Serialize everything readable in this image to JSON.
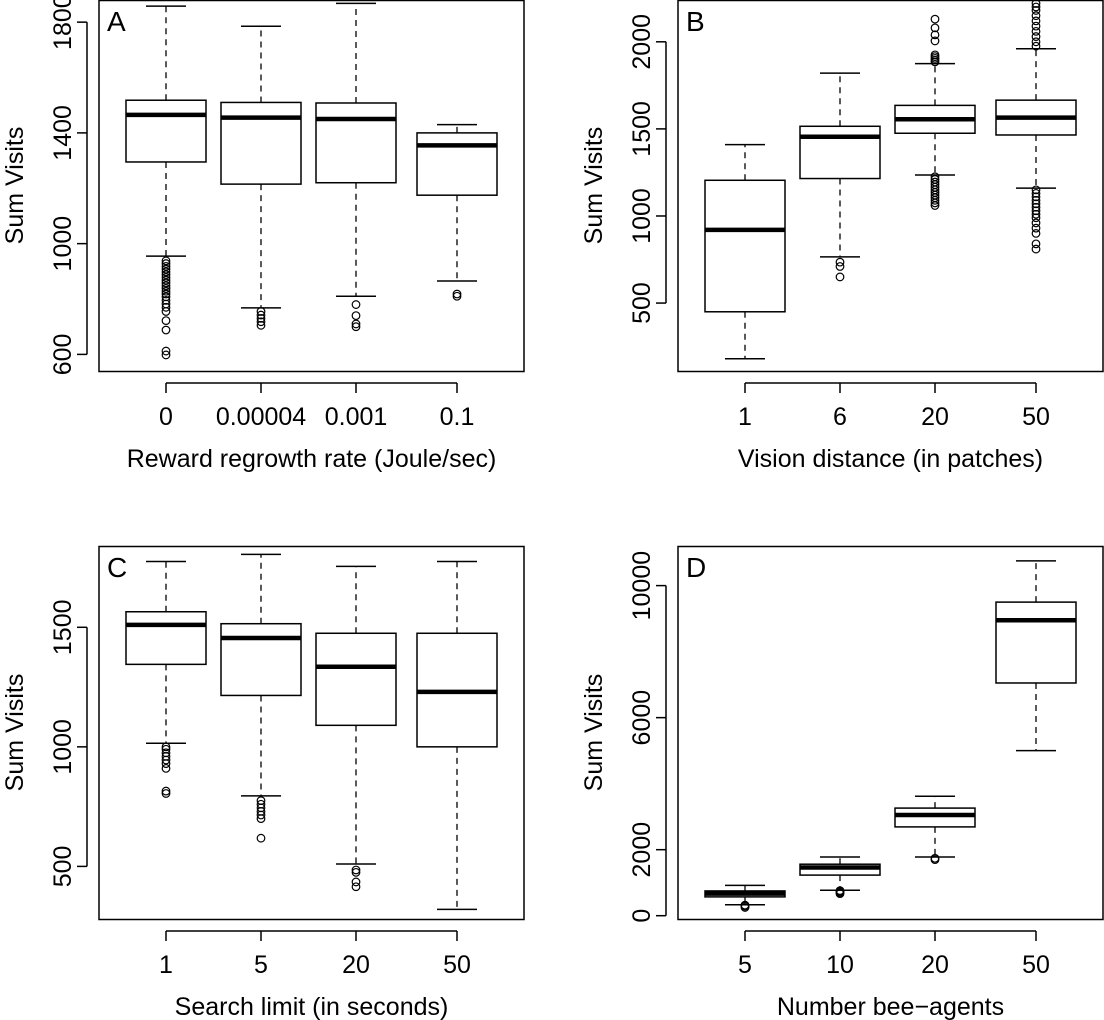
{
  "chart_data": [
    {
      "type": "box",
      "panel": "A",
      "xlabel": "Reward regrowth rate (Joule/sec)",
      "ylabel": "Sum Visits",
      "ylim": [
        540,
        1880
      ],
      "yticks": [
        600,
        1000,
        1400,
        1800
      ],
      "categories": [
        "0",
        "0.00004",
        "0.001",
        "0.1"
      ],
      "boxes": [
        {
          "whisker_low": 955,
          "q1": 1295,
          "median": 1465,
          "q3": 1518,
          "whisker_high": 1858,
          "outliers": [
            598,
            612,
            688,
            722,
            755,
            770,
            782,
            795,
            808,
            818,
            828,
            838,
            848,
            858,
            868,
            878,
            888,
            898,
            908,
            918,
            928,
            938
          ]
        },
        {
          "whisker_low": 768,
          "q1": 1215,
          "median": 1455,
          "q3": 1510,
          "whisker_high": 1785,
          "outliers": [
            705,
            718,
            730,
            742,
            755
          ]
        },
        {
          "whisker_low": 810,
          "q1": 1220,
          "median": 1450,
          "q3": 1508,
          "whisker_high": 1868,
          "outliers": [
            700,
            710,
            740,
            780
          ]
        },
        {
          "whisker_low": 865,
          "q1": 1175,
          "median": 1355,
          "q3": 1400,
          "whisker_high": 1430,
          "outliers": [
            810,
            818
          ]
        }
      ]
    },
    {
      "type": "box",
      "panel": "B",
      "xlabel": "Vision distance (in patches)",
      "ylabel": "Sum Visits",
      "ylim": [
        110,
        2240
      ],
      "yticks": [
        500,
        1000,
        1500,
        2000
      ],
      "categories": [
        "1",
        "6",
        "20",
        "50"
      ],
      "boxes": [
        {
          "whisker_low": 180,
          "q1": 450,
          "median": 920,
          "q3": 1205,
          "whisker_high": 1410,
          "outliers": []
        },
        {
          "whisker_low": 765,
          "q1": 1215,
          "median": 1455,
          "q3": 1515,
          "whisker_high": 1820,
          "outliers": [
            650,
            710,
            735
          ]
        },
        {
          "whisker_low": 1235,
          "q1": 1475,
          "median": 1555,
          "q3": 1635,
          "whisker_high": 1875,
          "outliers": [
            1060,
            1075,
            1090,
            1105,
            1120,
            1135,
            1150,
            1165,
            1180,
            1195,
            1210,
            1225,
            1885,
            1895,
            1905,
            1915,
            1925,
            2005,
            2040,
            2080,
            2130
          ]
        },
        {
          "whisker_low": 1160,
          "q1": 1465,
          "median": 1565,
          "q3": 1665,
          "whisker_high": 1960,
          "outliers": [
            810,
            840,
            900,
            930,
            960,
            990,
            1010,
            1030,
            1050,
            1070,
            1090,
            1110,
            1130,
            1150,
            1975,
            2000,
            2030,
            2060,
            2090,
            2120,
            2150,
            2180,
            2200,
            2220
          ]
        }
      ]
    },
    {
      "type": "box",
      "panel": "C",
      "xlabel": "Search limit (in seconds)",
      "ylabel": "Sum Visits",
      "ylim": [
        280,
        1840
      ],
      "yticks": [
        500,
        1000,
        1500
      ],
      "categories": [
        "1",
        "5",
        "20",
        "50"
      ],
      "boxes": [
        {
          "whisker_low": 1015,
          "q1": 1345,
          "median": 1510,
          "q3": 1565,
          "whisker_high": 1775,
          "outliers": [
            805,
            815,
            910,
            930,
            945,
            960,
            975,
            990,
            1000
          ]
        },
        {
          "whisker_low": 795,
          "q1": 1215,
          "median": 1455,
          "q3": 1515,
          "whisker_high": 1805,
          "outliers": [
            618,
            700,
            715,
            730,
            745,
            760,
            775
          ]
        },
        {
          "whisker_low": 510,
          "q1": 1090,
          "median": 1335,
          "q3": 1475,
          "whisker_high": 1755,
          "outliers": [
            415,
            435,
            475,
            485
          ]
        },
        {
          "whisker_low": 320,
          "q1": 1000,
          "median": 1230,
          "q3": 1475,
          "whisker_high": 1775,
          "outliers": []
        }
      ]
    },
    {
      "type": "box",
      "panel": "D",
      "xlabel": "Number bee−agents",
      "ylabel": "Sum Visits",
      "ylim": [
        -100,
        11200
      ],
      "yticks": [
        0,
        2000,
        6000,
        10000
      ],
      "categories": [
        "5",
        "10",
        "20",
        "50"
      ],
      "boxes": [
        {
          "whisker_low": 330,
          "q1": 570,
          "median": 670,
          "q3": 750,
          "whisker_high": 920,
          "outliers": [
            250,
            290,
            320
          ]
        },
        {
          "whisker_low": 770,
          "q1": 1230,
          "median": 1460,
          "q3": 1560,
          "whisker_high": 1780,
          "outliers": [
            670,
            700,
            730,
            760
          ]
        },
        {
          "whisker_low": 1780,
          "q1": 2690,
          "median": 3050,
          "q3": 3260,
          "whisker_high": 3620,
          "outliers": [
            1700,
            1740
          ]
        },
        {
          "whisker_low": 5000,
          "q1": 7050,
          "median": 8950,
          "q3": 9500,
          "whisker_high": 10750,
          "outliers": []
        }
      ]
    }
  ]
}
